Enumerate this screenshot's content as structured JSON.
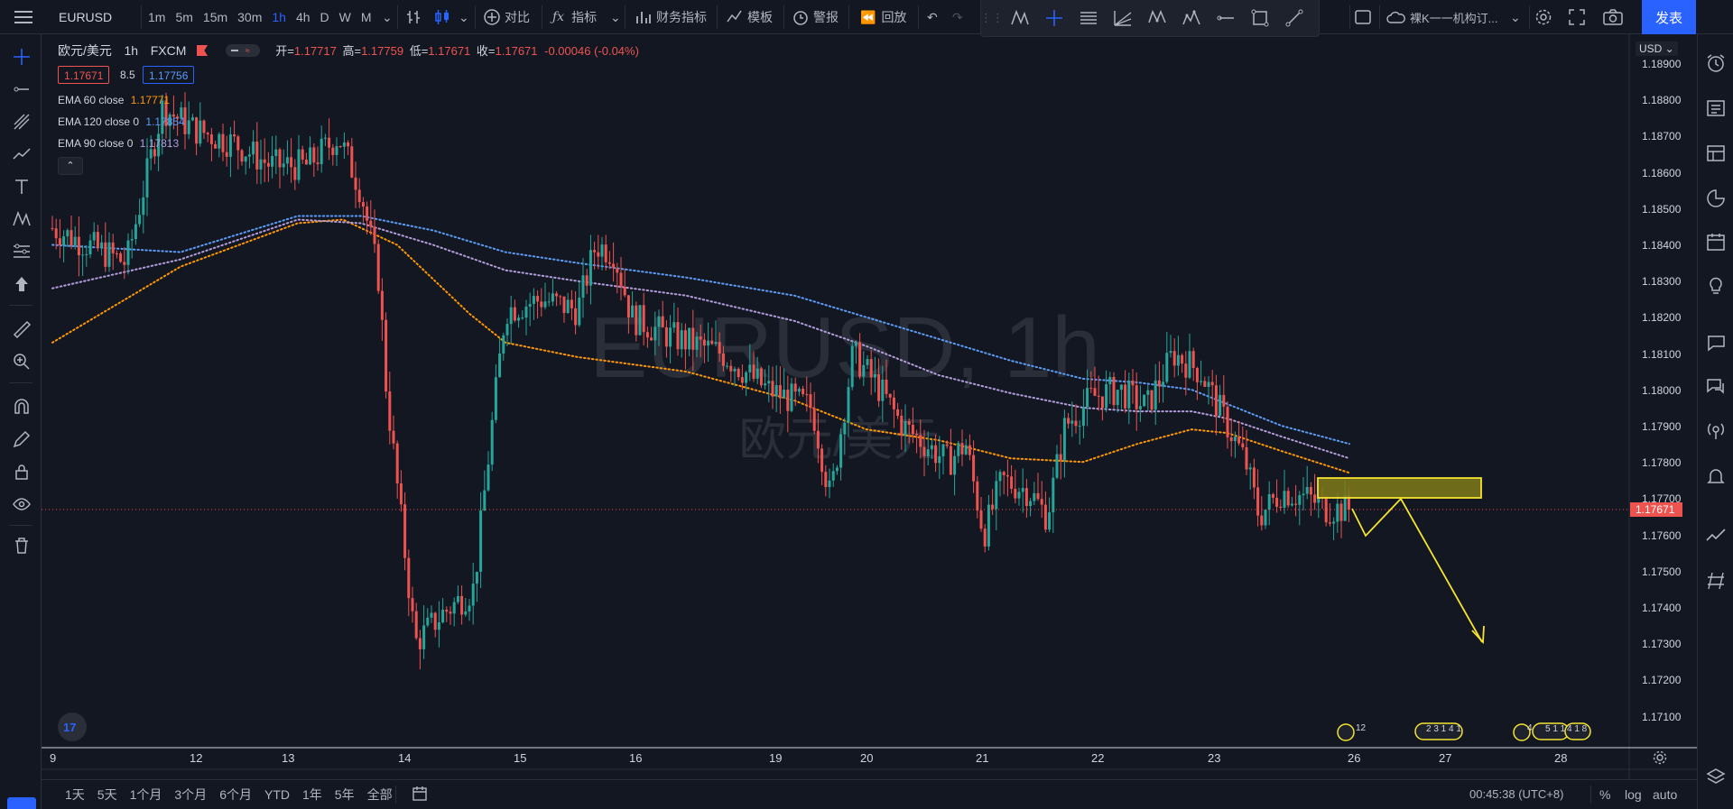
{
  "topbar": {
    "symbol": "EURUSD",
    "intervals": [
      "1m",
      "5m",
      "15m",
      "30m",
      "1h",
      "4h",
      "D",
      "W",
      "M"
    ],
    "active_interval": "1h",
    "compare_label": "对比",
    "indicators_label": "指标",
    "financials_label": "财务指标",
    "templates_label": "模板",
    "alert_label": "警报",
    "replay_label": "回放",
    "layout_name": "裸K一一机构订...",
    "publish_label": "发表"
  },
  "legend": {
    "pair": "欧元/美元",
    "interval": "1h",
    "exchange": "FXCM",
    "open_label": "开=",
    "open": "1.17717",
    "high_label": "高=",
    "high": "1.17759",
    "low_label": "低=",
    "low": "1.17671",
    "close_label": "收=",
    "close": "1.17671",
    "change": "-0.00046 (-0.04%)",
    "bid": "1.17671",
    "spread": "8.5",
    "ask": "1.17756"
  },
  "emas": [
    {
      "label": "EMA 60 close",
      "value": "1.17771",
      "color": "#ff9800"
    },
    {
      "label": "EMA 120 close 0",
      "value": "1.17854",
      "color": "#5b9cf6"
    },
    {
      "label": "EMA 90 close 0",
      "value": "1.17813",
      "color": "#b39ddb"
    }
  ],
  "watermark": {
    "symbol": "EURUSD, 1h",
    "name": "欧元/美元"
  },
  "price_axis": {
    "currency": "USD",
    "ticks": [
      "1.18900",
      "1.18800",
      "1.18700",
      "1.18600",
      "1.18500",
      "1.18400",
      "1.18300",
      "1.18200",
      "1.18100",
      "1.18000",
      "1.17900",
      "1.17800",
      "1.17700",
      "1.17600",
      "1.17500",
      "1.17400",
      "1.17300",
      "1.17200",
      "1.17100"
    ],
    "current_price": "1.17671"
  },
  "time_axis": {
    "ticks": [
      "9",
      "12",
      "13",
      "14",
      "15",
      "16",
      "19",
      "20",
      "21",
      "22",
      "23",
      "26",
      "27",
      "28"
    ]
  },
  "events": [
    "12",
    "2 3 1 4 1",
    "4",
    "5 1 1",
    "4 1 8"
  ],
  "bottombar": {
    "ranges": [
      "1天",
      "5天",
      "1个月",
      "3个月",
      "6个月",
      "YTD",
      "1年",
      "5年",
      "全部"
    ],
    "clock": "00:45:38 (UTC+8)",
    "percent_label": "%",
    "log_label": "log",
    "auto_label": "auto"
  },
  "colors": {
    "up": "#26a69a",
    "down": "#ef5350",
    "background": "#131722",
    "zone": "#f5e330",
    "accent": "#2962ff"
  },
  "chart_data": {
    "type": "candlestick",
    "series": [
      {
        "name": "EMA 60 close",
        "color": "#ff9800"
      },
      {
        "name": "EMA 120 close 0",
        "color": "#5b9cf6"
      },
      {
        "name": "EMA 90 close 0",
        "color": "#b39ddb"
      }
    ],
    "ylim": [
      1.1706,
      1.1892
    ],
    "annotations": {
      "supply_zone": {
        "price_low": 1.177,
        "price_high": 1.17756
      },
      "projection_path": [
        1.17671,
        1.176,
        1.177,
        1.173
      ]
    }
  }
}
